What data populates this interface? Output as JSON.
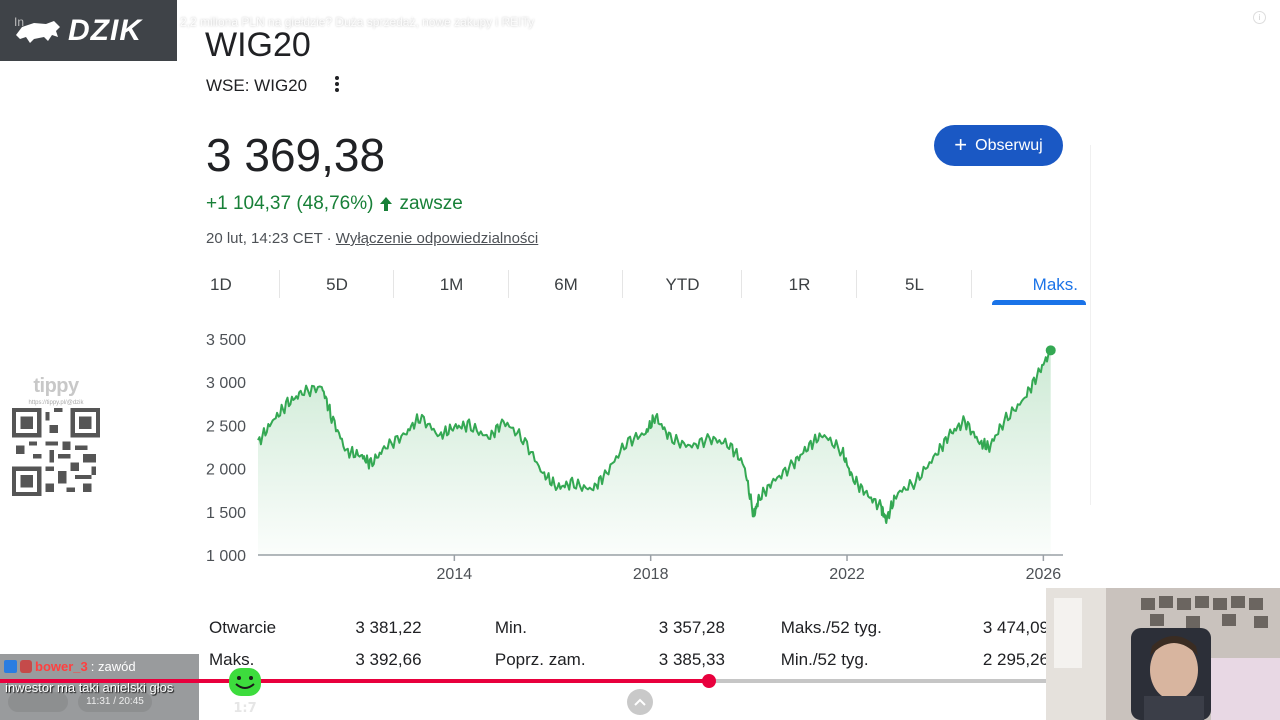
{
  "overlay": {
    "logo_text": "DZIK",
    "video_title": "2,2 miliona PLN na giełdzie? Duża sprzedaż, nowe zakupy i REITy",
    "video_title_left": "In",
    "time_pill": "11:31 / 20:45"
  },
  "stock": {
    "name": "WIG20",
    "exchange": "WSE: WIG20",
    "price": "3 369,38",
    "change": "+1 104,37 (48,76%)",
    "change_period": "zawsze",
    "timestamp": "20 lut, 14:23 CET · ",
    "disclaimer": "Wyłączenie odpowiedzialności",
    "follow_label": "Obserwuj",
    "colors": {
      "positive": "#188038",
      "accent": "#1a73e8",
      "button": "#1a58c4"
    }
  },
  "range_tabs": [
    {
      "label": "1D",
      "active": false
    },
    {
      "label": "5D",
      "active": false
    },
    {
      "label": "1M",
      "active": false
    },
    {
      "label": "6M",
      "active": false
    },
    {
      "label": "YTD",
      "active": false
    },
    {
      "label": "1R",
      "active": false
    },
    {
      "label": "5L",
      "active": false
    },
    {
      "label": "Maks.",
      "active": true
    }
  ],
  "chart_data": {
    "type": "area",
    "ylim": [
      1000,
      3500
    ],
    "xlim": [
      2010,
      2026.4
    ],
    "y_ticks": [
      "3 500",
      "3 000",
      "2 500",
      "2 000",
      "1 500",
      "1 000"
    ],
    "y_tick_values": [
      3500,
      3000,
      2500,
      2000,
      1500,
      1000
    ],
    "x_ticks": [
      "2014",
      "2018",
      "2022",
      "2026"
    ],
    "x_tick_values": [
      2014,
      2018,
      2022,
      2026
    ],
    "line_color": "#34a853",
    "grid": false,
    "series": [
      {
        "x": [
          2010,
          2010.3,
          2010.6,
          2010.9,
          2011.3,
          2011.5,
          2011.8,
          2012.1,
          2012.3,
          2012.6,
          2013.0,
          2013.3,
          2013.7,
          2014.0,
          2014.3,
          2014.7,
          2015.0,
          2015.4,
          2015.8,
          2016.1,
          2016.4,
          2016.8,
          2017.1,
          2017.5,
          2017.9,
          2018.1,
          2018.4,
          2018.8,
          2019.2,
          2019.6,
          2019.9,
          2020.1,
          2020.2,
          2020.5,
          2020.9,
          2021.2,
          2021.5,
          2021.9,
          2022.1,
          2022.4,
          2022.7,
          2022.8,
          2023.0,
          2023.4,
          2023.8,
          2024.1,
          2024.4,
          2024.7,
          2024.9,
          2025.2,
          2025.6,
          2025.9,
          2026.15
        ],
        "y": [
          2300,
          2550,
          2750,
          2880,
          2950,
          2600,
          2200,
          2150,
          2050,
          2250,
          2400,
          2600,
          2380,
          2480,
          2500,
          2350,
          2550,
          2350,
          1950,
          1780,
          1830,
          1750,
          1950,
          2300,
          2420,
          2600,
          2350,
          2250,
          2350,
          2280,
          2050,
          1450,
          1650,
          1850,
          2050,
          2250,
          2400,
          2200,
          1900,
          1700,
          1550,
          1400,
          1700,
          1850,
          2150,
          2400,
          2550,
          2300,
          2250,
          2550,
          2800,
          3100,
          3369
        ]
      }
    ]
  },
  "stats": {
    "rows": [
      [
        {
          "label": "Otwarcie",
          "value": "3 381,22"
        },
        {
          "label": "Min.",
          "value": "3 357,28"
        },
        {
          "label": "Maks./52 tyg.",
          "value": "3 474,09"
        }
      ],
      [
        {
          "label": "Maks.",
          "value": "3 392,66"
        },
        {
          "label": "Poprz. zam.",
          "value": "3 385,33"
        },
        {
          "label": "Min./52 tyg.",
          "value": "2 295,26"
        }
      ]
    ]
  },
  "tippy": {
    "title": "tippy",
    "url": "https://tippy.pl/@dzik"
  },
  "chat": {
    "username": "bower_3",
    "separator": " : zawód",
    "message": "inwestor ma taki anielski głos"
  },
  "sticker_text": "1:7",
  "video_progress": 0.678
}
